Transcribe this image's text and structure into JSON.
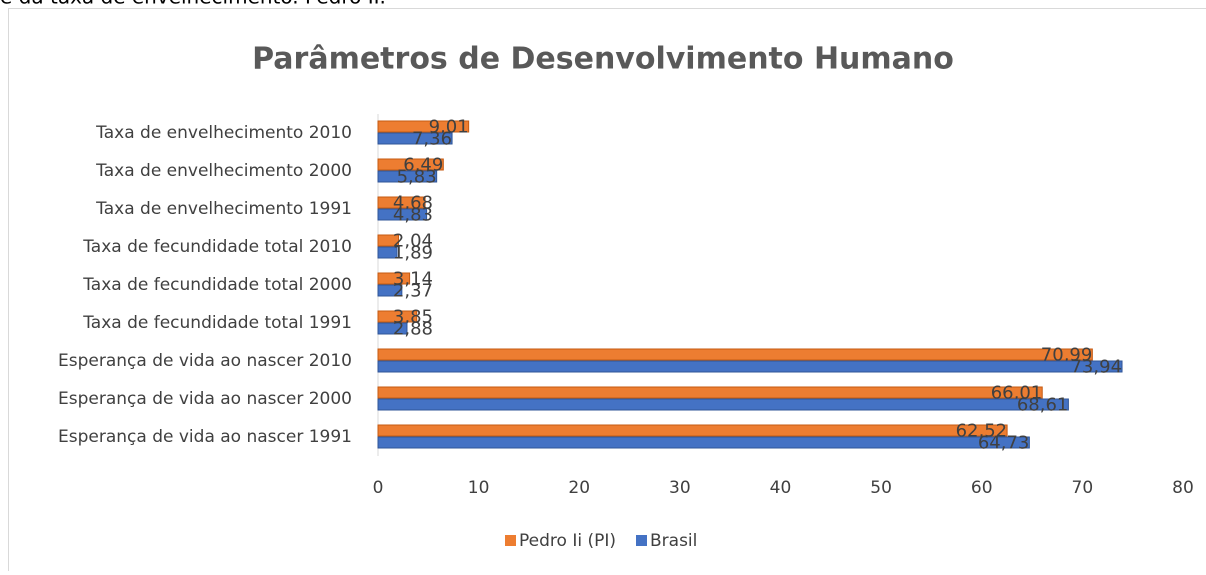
{
  "page_text": "e da taxa de envelhecimento. Pedro II.",
  "chart_data": {
    "type": "bar",
    "orientation": "horizontal",
    "title": "Parâmetros de Desenvolvimento Humano",
    "categories": [
      "Taxa de envelhecimento 2010",
      "Taxa de envelhecimento 2000",
      "Taxa de envelhecimento 1991",
      "Taxa de fecundidade total 2010",
      "Taxa de fecundidade total 2000",
      "Taxa de fecundidade total 1991",
      "Esperança de vida ao nascer 2010",
      "Esperança de vida ao nascer 2000",
      "Esperança de vida ao nascer 1991"
    ],
    "series": [
      {
        "name": "Pedro Ii (PI)",
        "color": "#ed7d31",
        "values": [
          9.01,
          6.49,
          4.68,
          2.04,
          3.14,
          3.85,
          70.99,
          66.01,
          62.52
        ],
        "value_labels": [
          "9,01",
          "6,49",
          "4,68",
          "2,04",
          "3,14",
          "3,85",
          "70,99",
          "66,01",
          "62,52"
        ]
      },
      {
        "name": "Brasil",
        "color": "#4472c4",
        "values": [
          7.36,
          5.83,
          4.83,
          1.89,
          2.37,
          2.88,
          73.94,
          68.61,
          64.73
        ],
        "value_labels": [
          "7,36",
          "5,83",
          "4,83",
          "1,89",
          "2,37",
          "2,88",
          "73,94",
          "68,61",
          "64,73"
        ]
      }
    ],
    "xlim": [
      0,
      80
    ],
    "xticks": [
      0,
      10,
      20,
      30,
      40,
      50,
      60,
      70,
      80
    ],
    "grid": false,
    "legend": "bottom"
  }
}
